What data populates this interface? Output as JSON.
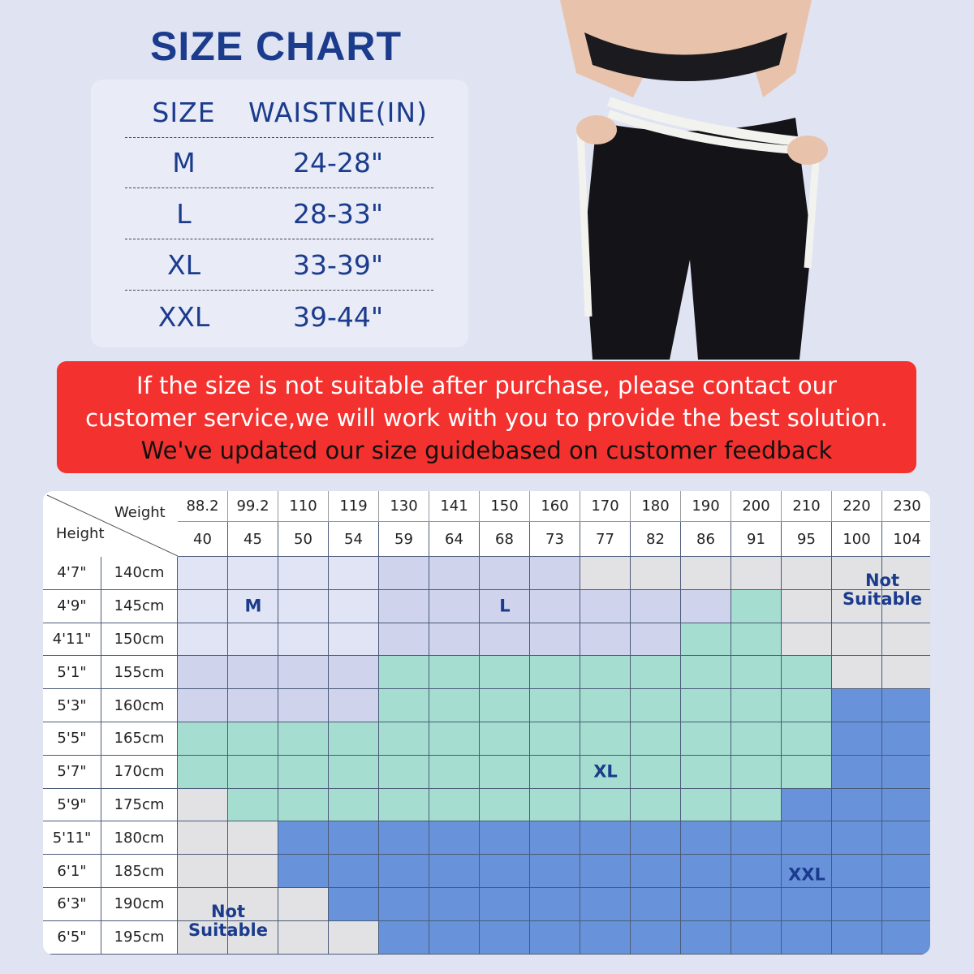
{
  "title": "SIZE CHART",
  "waist_table": {
    "headers": [
      "SIZE",
      "WAISTNE(IN)"
    ],
    "rows": [
      [
        "M",
        "24-28\""
      ],
      [
        "L",
        "28-33\""
      ],
      [
        "XL",
        "33-39\""
      ],
      [
        "XXL",
        "39-44\""
      ]
    ]
  },
  "banner": {
    "lines": [
      "If the size is not suitable after purchase, please contact our",
      "customer service,we will work with you to provide the best solution.",
      "We've updated our size guidebased on customer feedback"
    ]
  },
  "grid": {
    "weight_label": "Weight",
    "height_label": "Height",
    "weights_lb": [
      "88.2",
      "99.2",
      "110",
      "119",
      "130",
      "141",
      "150",
      "160",
      "170",
      "180",
      "190",
      "200",
      "210",
      "220",
      "230"
    ],
    "weights_kg": [
      "40",
      "45",
      "50",
      "54",
      "59",
      "64",
      "68",
      "73",
      "77",
      "82",
      "86",
      "91",
      "95",
      "100",
      "104"
    ],
    "heights_ft": [
      "4'7\"",
      "4'9\"",
      "4'11\"",
      "5'1\"",
      "5'3\"",
      "5'5\"",
      "5'7\"",
      "5'9\"",
      "5'11\"",
      "6'1\"",
      "6'3\"",
      "6'5\""
    ],
    "heights_cm": [
      "140cm",
      "145cm",
      "150cm",
      "155cm",
      "160cm",
      "165cm",
      "170cm",
      "175cm",
      "180cm",
      "185cm",
      "190cm",
      "195cm"
    ],
    "cells": [
      [
        "M",
        "M",
        "M",
        "M",
        "L",
        "L",
        "L",
        "L",
        "N",
        "N",
        "N",
        "N",
        "N",
        "N",
        "N"
      ],
      [
        "M",
        "M",
        "M",
        "M",
        "L",
        "L",
        "L",
        "L",
        "L",
        "L",
        "L",
        "XL",
        "N",
        "N",
        "N"
      ],
      [
        "M",
        "M",
        "M",
        "M",
        "L",
        "L",
        "L",
        "L",
        "L",
        "L",
        "XL",
        "XL",
        "N",
        "N",
        "N"
      ],
      [
        "L",
        "L",
        "L",
        "L",
        "XL",
        "XL",
        "XL",
        "XL",
        "XL",
        "XL",
        "XL",
        "XL",
        "XL",
        "N",
        "N"
      ],
      [
        "L",
        "L",
        "L",
        "L",
        "XL",
        "XL",
        "XL",
        "XL",
        "XL",
        "XL",
        "XL",
        "XL",
        "XL",
        "XXL",
        "XXL"
      ],
      [
        "XL",
        "XL",
        "XL",
        "XL",
        "XL",
        "XL",
        "XL",
        "XL",
        "XL",
        "XL",
        "XL",
        "XL",
        "XL",
        "XXL",
        "XXL"
      ],
      [
        "XL",
        "XL",
        "XL",
        "XL",
        "XL",
        "XL",
        "XL",
        "XL",
        "XL",
        "XL",
        "XL",
        "XL",
        "XL",
        "XXL",
        "XXL"
      ],
      [
        "N",
        "XL",
        "XL",
        "XL",
        "XL",
        "XL",
        "XL",
        "XL",
        "XL",
        "XL",
        "XL",
        "XL",
        "XXL",
        "XXL",
        "XXL"
      ],
      [
        "N",
        "N",
        "XXL",
        "XXL",
        "XXL",
        "XXL",
        "XXL",
        "XXL",
        "XXL",
        "XXL",
        "XXL",
        "XXL",
        "XXL",
        "XXL",
        "XXL"
      ],
      [
        "N",
        "N",
        "XXL",
        "XXL",
        "XXL",
        "XXL",
        "XXL",
        "XXL",
        "XXL",
        "XXL",
        "XXL",
        "XXL",
        "XXL",
        "XXL",
        "XXL"
      ],
      [
        "N",
        "N",
        "N",
        "XXL",
        "XXL",
        "XXL",
        "XXL",
        "XXL",
        "XXL",
        "XXL",
        "XXL",
        "XXL",
        "XXL",
        "XXL",
        "XXL"
      ],
      [
        "N",
        "N",
        "N",
        "N",
        "XXL",
        "XXL",
        "XXL",
        "XXL",
        "XXL",
        "XXL",
        "XXL",
        "XXL",
        "XXL",
        "XXL",
        "XXL"
      ]
    ],
    "colors": {
      "M": "#e1e4f4",
      "L": "#cfd4ec",
      "XL": "#a5ded0",
      "XXL": "#6893db",
      "N": "#e2e2e4"
    },
    "labels": {
      "M": "M",
      "L": "L",
      "XL": "XL",
      "XXL": "XXL",
      "N": "Not Suitable"
    }
  }
}
